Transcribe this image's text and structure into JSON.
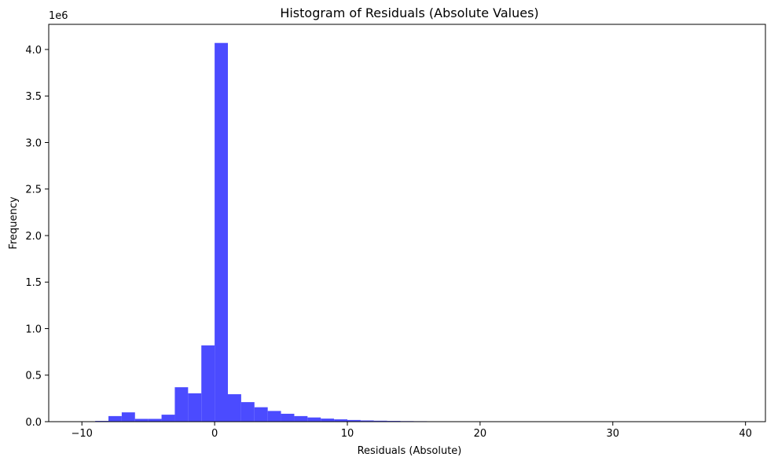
{
  "chart_data": {
    "type": "bar",
    "title": "Histogram of Residuals (Absolute Values)",
    "xlabel": "Residuals (Absolute)",
    "ylabel": "Frequency",
    "y_offset_label": "1e6",
    "xlim": [
      -12.5,
      41.5
    ],
    "ylim": [
      0,
      4.27
    ],
    "x_ticks": [
      -10,
      0,
      10,
      20,
      30,
      40
    ],
    "x_tick_labels": [
      "−10",
      "0",
      "10",
      "20",
      "30",
      "40"
    ],
    "y_ticks": [
      0.0,
      0.5,
      1.0,
      1.5,
      2.0,
      2.5,
      3.0,
      3.5,
      4.0
    ],
    "y_tick_labels": [
      "0.0",
      "0.5",
      "1.0",
      "1.5",
      "2.0",
      "2.5",
      "3.0",
      "3.5",
      "4.0"
    ],
    "bar_color": "#4b4bff",
    "grid": false,
    "bin_width": 1.0,
    "bin_edges": [
      -10.0,
      -9.0,
      -8.0,
      -7.0,
      -6.0,
      -5.0,
      -4.0,
      -3.0,
      -2.0,
      -1.0,
      0.0,
      1.0,
      2.0,
      3.0,
      4.0,
      5.0,
      6.0,
      7.0,
      8.0,
      9.0,
      10.0,
      11.0,
      12.0,
      13.0,
      14.0,
      15.0,
      16.0,
      17.0,
      18.0,
      19.0
    ],
    "values": [
      0.002,
      0.008,
      0.06,
      0.1,
      0.03,
      0.03,
      0.075,
      0.37,
      0.305,
      0.82,
      4.07,
      0.295,
      0.21,
      0.155,
      0.115,
      0.085,
      0.06,
      0.045,
      0.033,
      0.025,
      0.018,
      0.013,
      0.01,
      0.008,
      0.006,
      0.005,
      0.004,
      0.003,
      0.003,
      0.002
    ]
  }
}
